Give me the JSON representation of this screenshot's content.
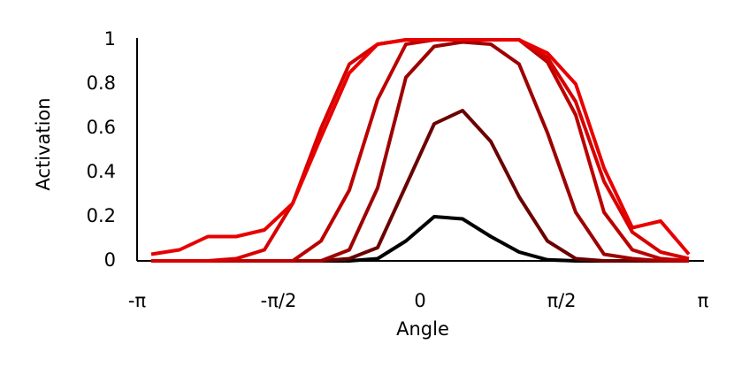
{
  "chart_data": {
    "type": "line",
    "x_label": "Angle",
    "y_label": "Activation",
    "x": [
      -2.985,
      -2.67,
      -2.356,
      -2.042,
      -1.728,
      -1.414,
      -1.1,
      -0.785,
      -0.471,
      -0.157,
      0.157,
      0.471,
      0.785,
      1.1,
      1.414,
      1.728,
      2.042,
      2.356,
      2.67,
      2.985
    ],
    "series": [
      {
        "color": "#000000",
        "values": [
          0,
          0,
          0,
          0,
          0,
          0,
          0,
          0,
          0.01,
          0.09,
          0.2,
          0.19,
          0.11,
          0.04,
          0.005,
          0,
          0,
          0,
          0,
          0
        ]
      },
      {
        "color": "#6b0000",
        "values": [
          0,
          0,
          0,
          0,
          0,
          0,
          0,
          0.01,
          0.06,
          0.34,
          0.62,
          0.68,
          0.54,
          0.29,
          0.09,
          0.01,
          0,
          0,
          0,
          0
        ]
      },
      {
        "color": "#9e0000",
        "values": [
          0,
          0,
          0,
          0,
          0,
          0,
          0,
          0.05,
          0.33,
          0.83,
          0.97,
          0.99,
          0.98,
          0.89,
          0.58,
          0.22,
          0.03,
          0.01,
          0,
          0
        ]
      },
      {
        "color": "#bb0000",
        "values": [
          0,
          0,
          0,
          0,
          0,
          0,
          0.09,
          0.32,
          0.73,
          0.98,
          1,
          1,
          1,
          1,
          0.9,
          0.66,
          0.22,
          0.05,
          0.01,
          0
        ]
      },
      {
        "color": "#d60000",
        "values": [
          0,
          0,
          0,
          0.01,
          0.05,
          0.26,
          0.6,
          0.89,
          0.98,
          1,
          1,
          1,
          1,
          1,
          0.92,
          0.72,
          0.36,
          0.13,
          0.04,
          0.01
        ]
      },
      {
        "color": "#e80000",
        "values": [
          0.03,
          0.05,
          0.11,
          0.11,
          0.14,
          0.26,
          0.56,
          0.85,
          0.98,
          1,
          1,
          1,
          1,
          1,
          0.94,
          0.8,
          0.42,
          0.15,
          0.18,
          0.03
        ]
      }
    ],
    "xlim": [
      -3.14159,
      3.14159
    ],
    "xticks": [
      {
        "value": -3.14159,
        "label": "-π"
      },
      {
        "value": -1.5708,
        "label": "-π/2"
      },
      0,
      {
        "value": 1.5708,
        "label": "π/2"
      },
      {
        "value": 3.14159,
        "label": "π"
      }
    ],
    "ylim": [
      0,
      1
    ],
    "yticks": [
      0,
      0.2,
      0.4,
      0.6,
      0.8,
      1
    ]
  }
}
